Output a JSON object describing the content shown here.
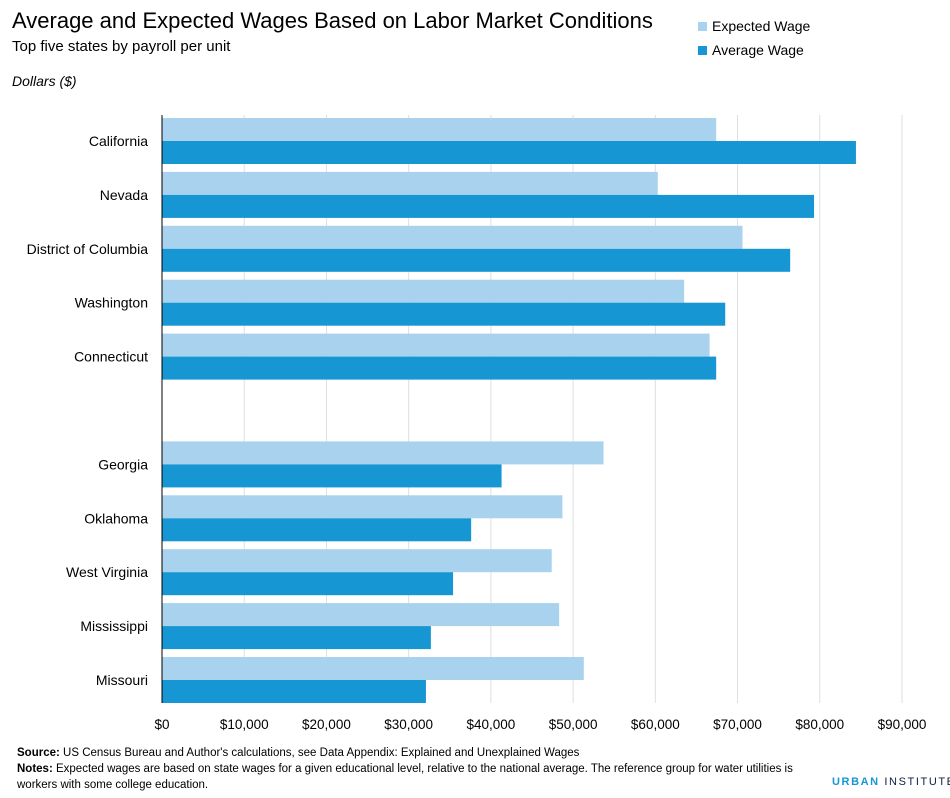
{
  "title": "Average and Expected Wages Based on Labor Market Conditions",
  "subtitle": "Top five states by payroll per unit",
  "unit_label": "Dollars ($)",
  "footer": {
    "source_label": "Source:",
    "source_text": " US Census Bureau and Author's calculations, see Data Appendix: Explained and Unexplained Wages",
    "notes_label": "Notes:",
    "notes_text": " Expected wages are based on state wages for a given educational level, relative to the national average.  The reference group for water utilities is workers with some college education."
  },
  "brand": {
    "part1": "URBAN",
    "part2": " INSTITUTE"
  },
  "colors": {
    "expected": "#a9d2ef",
    "average": "#1696d2",
    "grid": "#dedede",
    "axis": "#000000"
  },
  "chart_data": {
    "type": "bar",
    "orientation": "horizontal",
    "categories": [
      "California",
      "Nevada",
      "District of Columbia",
      "Washington",
      "Connecticut",
      "",
      "Georgia",
      "Oklahoma",
      "West Virginia",
      "Mississippi",
      "Missouri"
    ],
    "series": [
      {
        "name": "Expected Wage",
        "color": "#a9d2ef",
        "values": [
          67400,
          60300,
          70600,
          63500,
          66600,
          null,
          53700,
          48700,
          47400,
          48300,
          51300
        ]
      },
      {
        "name": "Average Wage",
        "color": "#1696d2",
        "values": [
          84400,
          79300,
          76400,
          68500,
          67400,
          null,
          41300,
          37600,
          35400,
          32700,
          32100
        ]
      }
    ],
    "xlim": [
      0,
      90000
    ],
    "xticks": [
      0,
      10000,
      20000,
      30000,
      40000,
      50000,
      60000,
      70000,
      80000,
      90000
    ],
    "xtick_labels": [
      "$0",
      "$10,000",
      "$20,000",
      "$30,000",
      "$40,000",
      "$50,000",
      "$60,000",
      "$70,000",
      "$80,000",
      "$90,000"
    ],
    "grid": true,
    "legend_position": "top-right"
  }
}
